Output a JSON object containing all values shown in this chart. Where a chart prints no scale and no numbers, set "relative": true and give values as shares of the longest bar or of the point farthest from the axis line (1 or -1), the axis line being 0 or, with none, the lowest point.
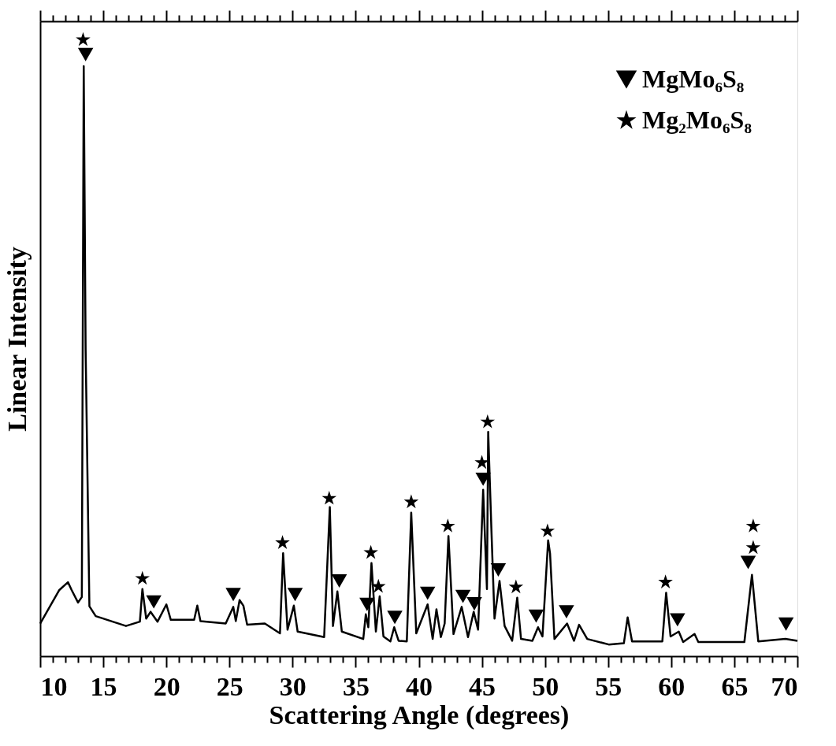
{
  "chart_data": {
    "type": "line",
    "relative": true,
    "xlabel": "Scattering Angle (degrees)",
    "ylabel": "Linear Intensity",
    "xlim": [
      10,
      70
    ],
    "xticks": [
      10,
      {
        "value": 11,
        "label": null
      },
      {
        "value": 12,
        "label": null
      },
      {
        "value": 13,
        "label": null
      },
      {
        "value": 14,
        "label": null
      },
      15,
      {
        "value": 16,
        "label": null
      },
      {
        "value": 17,
        "label": null
      },
      {
        "value": 18,
        "label": null
      },
      {
        "value": 19,
        "label": null
      },
      20,
      {
        "value": 21,
        "label": null
      },
      {
        "value": 22,
        "label": null
      },
      {
        "value": 23,
        "label": null
      },
      {
        "value": 24,
        "label": null
      },
      25,
      {
        "value": 26,
        "label": null
      },
      {
        "value": 27,
        "label": null
      },
      {
        "value": 28,
        "label": null
      },
      {
        "value": 29,
        "label": null
      },
      30,
      {
        "value": 31,
        "label": null
      },
      {
        "value": 32,
        "label": null
      },
      {
        "value": 33,
        "label": null
      },
      {
        "value": 34,
        "label": null
      },
      35,
      {
        "value": 36,
        "label": null
      },
      {
        "value": 37,
        "label": null
      },
      {
        "value": 38,
        "label": null
      },
      {
        "value": 39,
        "label": null
      },
      40,
      {
        "value": 41,
        "label": null
      },
      {
        "value": 42,
        "label": null
      },
      {
        "value": 43,
        "label": null
      },
      {
        "value": 44,
        "label": null
      },
      45,
      {
        "value": 46,
        "label": null
      },
      {
        "value": 47,
        "label": null
      },
      {
        "value": 48,
        "label": null
      },
      {
        "value": 49,
        "label": null
      },
      50,
      {
        "value": 51,
        "label": null
      },
      {
        "value": 52,
        "label": null
      },
      {
        "value": 53,
        "label": null
      },
      {
        "value": 54,
        "label": null
      },
      55,
      {
        "value": 56,
        "label": null
      },
      {
        "value": 57,
        "label": null
      },
      {
        "value": 58,
        "label": null
      },
      {
        "value": 59,
        "label": null
      },
      60,
      {
        "value": 61,
        "label": null
      },
      {
        "value": 62,
        "label": null
      },
      {
        "value": 63,
        "label": null
      },
      {
        "value": 64,
        "label": null
      },
      65,
      {
        "value": 66,
        "label": null
      },
      {
        "value": 67,
        "label": null
      },
      {
        "value": 68,
        "label": null
      },
      {
        "value": 69,
        "label": null
      },
      70
    ],
    "grid": false,
    "legend": "top right",
    "series": [
      {
        "color": "#000000",
        "marker": "none",
        "x": [
          10,
          10.7,
          11.5,
          12.2,
          12.5,
          13.0,
          13.3,
          13.45,
          13.6,
          13.9,
          14.4,
          16.8,
          17.9,
          18.1,
          18.4,
          18.75,
          19.3,
          20.0,
          20.35,
          22.2,
          22.45,
          22.7,
          24.7,
          25.3,
          25.5,
          25.8,
          26.1,
          26.4,
          27.8,
          29.0,
          29.25,
          29.6,
          30.1,
          30.4,
          32.5,
          32.95,
          33.2,
          33.55,
          33.9,
          35.6,
          35.8,
          36.0,
          36.25,
          36.6,
          36.9,
          37.2,
          37.75,
          38.05,
          38.4,
          39.05,
          39.4,
          39.8,
          40.7,
          41.1,
          41.4,
          41.75,
          42.05,
          42.35,
          42.75,
          43.4,
          43.9,
          44.35,
          44.7,
          45.1,
          45.4,
          45.5,
          45.75,
          46.0,
          46.4,
          46.8,
          47.4,
          47.8,
          48.1,
          49.0,
          49.45,
          49.8,
          50.25,
          50.4,
          50.75,
          51.75,
          52.3,
          52.7,
          53.35,
          55.05,
          56.25,
          56.55,
          56.9,
          59.3,
          59.6,
          59.95,
          60.6,
          60.95,
          61.85,
          62.15,
          65.8,
          66.4,
          66.9,
          69.05,
          70
        ],
        "values": [
          0.053,
          0.078,
          0.107,
          0.12,
          0.107,
          0.087,
          0.096,
          0.957,
          0.498,
          0.081,
          0.065,
          0.049,
          0.056,
          0.109,
          0.061,
          0.072,
          0.056,
          0.084,
          0.059,
          0.059,
          0.082,
          0.057,
          0.053,
          0.08,
          0.057,
          0.091,
          0.082,
          0.051,
          0.053,
          0.037,
          0.167,
          0.043,
          0.082,
          0.04,
          0.031,
          0.242,
          0.049,
          0.105,
          0.04,
          0.028,
          0.068,
          0.047,
          0.151,
          0.04,
          0.097,
          0.032,
          0.024,
          0.047,
          0.025,
          0.024,
          0.233,
          0.037,
          0.084,
          0.028,
          0.076,
          0.031,
          0.053,
          0.195,
          0.036,
          0.08,
          0.031,
          0.072,
          0.043,
          0.27,
          0.109,
          0.364,
          0.208,
          0.061,
          0.122,
          0.049,
          0.025,
          0.095,
          0.028,
          0.025,
          0.047,
          0.032,
          0.188,
          0.167,
          0.028,
          0.053,
          0.025,
          0.051,
          0.028,
          0.019,
          0.021,
          0.063,
          0.024,
          0.024,
          0.103,
          0.032,
          0.04,
          0.023,
          0.036,
          0.023,
          0.023,
          0.132,
          0.024,
          0.028,
          0.025
        ]
      },
      {
        "type": "scatter",
        "name": "MgMo₆S₈",
        "color": "#000000",
        "marker": "triangle",
        "x": [
          13.6,
          19.0,
          25.3,
          30.2,
          33.7,
          35.9,
          38.1,
          40.7,
          43.5,
          44.4,
          45.1,
          46.3,
          49.3,
          51.7,
          60.5,
          66.1,
          69.1
        ],
        "values": [
          0.976,
          0.088,
          0.1,
          0.1,
          0.122,
          0.084,
          0.063,
          0.102,
          0.097,
          0.085,
          0.287,
          0.14,
          0.065,
          0.072,
          0.059,
          0.152,
          0.052
        ]
      },
      {
        "type": "scatter",
        "name": "Mg₂Mo₆S₈",
        "color": "#000000",
        "marker": "star",
        "x": [
          13.4,
          18.1,
          29.2,
          32.9,
          36.2,
          36.8,
          39.4,
          42.3,
          45.0,
          45.45,
          47.7,
          50.2,
          59.55,
          66.5,
          66.5
        ],
        "values": [
          1,
          0.126,
          0.184,
          0.256,
          0.168,
          0.113,
          0.25,
          0.211,
          0.314,
          0.38,
          0.112,
          0.203,
          0.12,
          0.176,
          0.211
        ]
      }
    ]
  }
}
